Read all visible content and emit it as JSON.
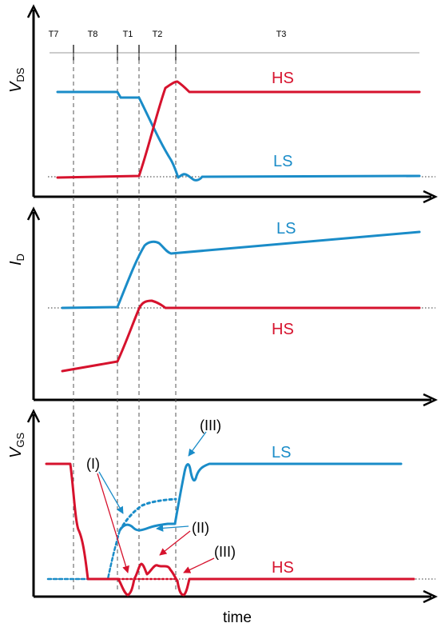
{
  "colors": {
    "hs": "#d6122d",
    "ls": "#1a8cc8",
    "axis": "#000000",
    "guide": "#555555",
    "topline": "#9a9a9a"
  },
  "phase_labels": [
    "T7",
    "T8",
    "T1",
    "T2",
    "T3"
  ],
  "panels": {
    "vds": {
      "ylabel": "V",
      "ylabel_sub": "DS",
      "hs_label": "HS",
      "ls_label": "LS"
    },
    "id": {
      "ylabel": "I",
      "ylabel_sub": "D",
      "hs_label": "HS",
      "ls_label": "LS"
    },
    "vgs": {
      "ylabel": "V",
      "ylabel_sub": "GS",
      "hs_label": "HS",
      "ls_label": "LS"
    }
  },
  "annotations": {
    "i": "(I)",
    "ii": "(II)",
    "iii_top": "(III)",
    "iii_bottom": "(III)"
  },
  "xlabel": "time"
}
